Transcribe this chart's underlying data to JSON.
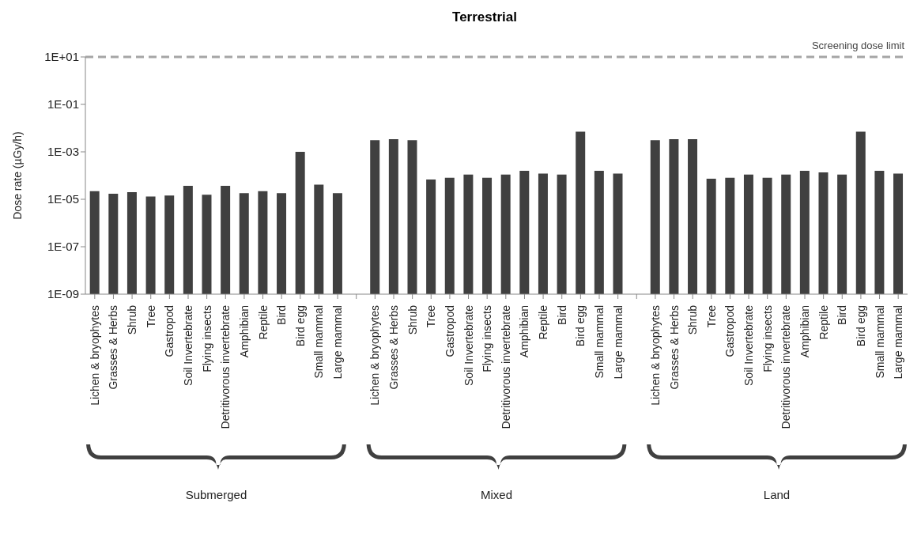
{
  "chart_data": {
    "type": "bar",
    "title": "Terrestrial",
    "ylabel": "Dose rate (µGy/h)",
    "categories": [
      "Lichen & bryophytes",
      "Grasses & Herbs",
      "Shrub",
      "Tree",
      "Gastropod",
      "Soil Invertebrate",
      "Flying insects",
      "Detritivorous invertebrate",
      "Amphibian",
      "Reptile",
      "Bird",
      "Bird egg",
      "Small mammal",
      "Large mammal",
      null,
      "Lichen & bryophytes",
      "Grasses & Herbs",
      "Shrub",
      "Tree",
      "Gastropod",
      "Soil Invertebrate",
      "Flying insects",
      "Detritivorous invertebrate",
      "Amphibian",
      "Reptile",
      "Bird",
      "Bird egg",
      "Small mammal",
      "Large mammal",
      null,
      "Lichen & bryophytes",
      "Grasses & Herbs",
      "Shrub",
      "Tree",
      "Gastropod",
      "Soil Invertebrate",
      "Flying insects",
      "Detritivorous invertebrate",
      "Amphibian",
      "Reptile",
      "Bird",
      "Bird egg",
      "Small mammal",
      "Large mammal"
    ],
    "values": [
      2.2e-05,
      1.7e-05,
      2e-05,
      1.3e-05,
      1.45e-05,
      3.7e-05,
      1.55e-05,
      3.7e-05,
      1.8e-05,
      2.2e-05,
      1.8e-05,
      0.001,
      4.1e-05,
      1.8e-05,
      null,
      0.0031,
      0.0034,
      0.0031,
      6.8e-05,
      8.1e-05,
      0.00011,
      8.1e-05,
      0.00011,
      0.00016,
      0.00012,
      0.00011,
      0.0071,
      0.00016,
      0.00012,
      null,
      0.0031,
      0.0034,
      0.0034,
      7.4e-05,
      8.1e-05,
      0.00011,
      8.1e-05,
      0.00011,
      0.00016,
      0.000135,
      0.00011,
      0.0071,
      0.00016,
      0.00012
    ],
    "color": "#404040",
    "log": true,
    "ylim": [
      1e-09,
      10
    ],
    "yticks": [
      {
        "value": 1e-09,
        "label": "1E-09"
      },
      {
        "value": 1e-07,
        "label": "1E-07"
      },
      {
        "value": 1e-05,
        "label": "1E-05"
      },
      {
        "value": 0.001,
        "label": "1E-03"
      },
      {
        "value": 0.1,
        "label": "1E-01"
      },
      {
        "value": 10,
        "label": "1E+01"
      }
    ],
    "ref_lines": [
      {
        "axis": "y",
        "value": 10,
        "label": "Screening dose limit",
        "color": "#a6a6a6",
        "line_style": "dashed"
      }
    ],
    "annotations": [
      "Submerged",
      "Mixed",
      "Land"
    ],
    "grid": false,
    "legend": false
  }
}
